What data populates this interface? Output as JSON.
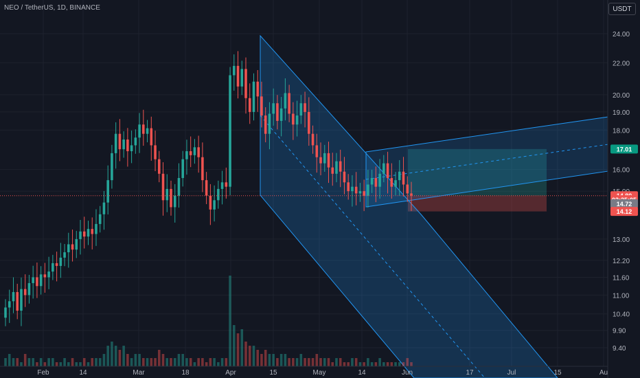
{
  "header": {
    "title": "NEO / TetherUS, 1D, BINANCE",
    "currency_button": "USDT"
  },
  "colors": {
    "background": "#131722",
    "grid": "#1e222d",
    "up": "#26a69a",
    "down": "#ef5350",
    "channel": "#2196f3",
    "profit_zone": "#26a69a",
    "loss_zone": "#ef5350",
    "text": "#b2b5be"
  },
  "chart_data": {
    "type": "candlestick",
    "symbol": "NEO / TetherUS",
    "interval": "1D",
    "exchange": "BINANCE",
    "y_scale": "log",
    "ylim": [
      9.0,
      25.0
    ],
    "y_ticks": [
      "24.00",
      "22.00",
      "20.00",
      "19.00",
      "18.00",
      "16.00",
      "15.00",
      "13.00",
      "12.20",
      "11.60",
      "11.00",
      "10.40",
      "9.90",
      "9.40"
    ],
    "x_ticks": [
      "Feb",
      "14",
      "Mar",
      "18",
      "Apr",
      "15",
      "May",
      "14",
      "Jun",
      "17",
      "Jul",
      "15",
      "Au"
    ],
    "price_badges": [
      {
        "label": "17.01",
        "value": 17.01,
        "color": "#089981"
      },
      {
        "label": "14.80",
        "value": 14.8,
        "color": "#ef5350"
      },
      {
        "label": "03:25:05",
        "value": 14.62,
        "color": "#ef5350"
      },
      {
        "label": "14.72",
        "value": 14.45,
        "color": "#787b86"
      },
      {
        "label": "14.12",
        "value": 14.12,
        "color": "#ef5350"
      }
    ],
    "last_price": 14.8,
    "trade_position": {
      "entry": 14.8,
      "target": 17.01,
      "stop": 14.12
    },
    "series_close": [
      10.6,
      10.8,
      11.1,
      10.5,
      11.2,
      11.0,
      11.4,
      11.6,
      11.3,
      11.7,
      11.6,
      11.8,
      12.1,
      12.0,
      12.3,
      12.5,
      12.8,
      12.6,
      13.0,
      13.3,
      13.1,
      13.4,
      13.2,
      13.6,
      14.0,
      14.5,
      15.5,
      16.8,
      17.8,
      17.0,
      17.5,
      16.9,
      17.2,
      17.6,
      18.3,
      17.8,
      18.1,
      17.2,
      16.5,
      15.8,
      14.6,
      15.1,
      14.3,
      14.8,
      15.6,
      16.5,
      16.9,
      16.7,
      17.1,
      16.6,
      15.5,
      14.8,
      14.2,
      14.6,
      15.1,
      15.4,
      15.2,
      21.2,
      21.8,
      20.5,
      21.6,
      19.8,
      19.0,
      20.8,
      19.9,
      18.8,
      17.8,
      18.9,
      19.5,
      18.5,
      19.2,
      20.1,
      18.9,
      18.3,
      18.8,
      19.5,
      19.0,
      17.8,
      17.2,
      16.6,
      16.3,
      16.8,
      16.1,
      15.8,
      16.4,
      15.9,
      15.4,
      15.0,
      15.2,
      14.9,
      15.0,
      14.8,
      15.3,
      15.6,
      15.2,
      15.8,
      16.3,
      15.6,
      15.2,
      15.5,
      15.9,
      15.3,
      14.9,
      14.8
    ],
    "volumes": [
      2,
      3,
      2,
      2,
      1,
      3,
      2,
      2,
      1,
      2,
      1,
      2,
      2,
      1,
      1,
      2,
      1,
      2,
      1,
      1,
      2,
      1,
      2,
      2,
      2,
      3,
      5,
      6,
      5,
      4,
      5,
      3,
      2,
      3,
      3,
      2,
      2,
      2,
      2,
      4,
      3,
      2,
      2,
      2,
      3,
      3,
      2,
      2,
      1,
      2,
      2,
      1,
      2,
      2,
      1,
      2,
      2,
      22,
      10,
      8,
      9,
      6,
      5,
      5,
      4,
      3,
      4,
      3,
      3,
      2,
      3,
      3,
      2,
      2,
      2,
      3,
      2,
      2,
      2,
      3,
      2,
      2,
      2,
      1,
      2,
      2,
      1,
      1,
      2,
      2,
      1,
      1,
      2,
      1,
      1,
      2,
      1,
      1,
      1,
      1,
      1,
      1,
      2,
      1
    ]
  }
}
